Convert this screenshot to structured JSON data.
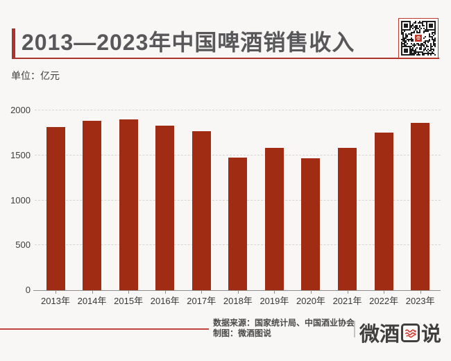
{
  "header": {
    "title": "2013—2023年中国啤酒销售收入"
  },
  "unit_label": "单位：亿元",
  "chart_data": {
    "type": "bar",
    "title": "2013—2023年中国啤酒销售收入",
    "xlabel": "",
    "ylabel": "亿元",
    "categories": [
      "2013年",
      "2014年",
      "2015年",
      "2016年",
      "2017年",
      "2018年",
      "2019年",
      "2020年",
      "2021年",
      "2022年",
      "2023年"
    ],
    "values": [
      1814,
      1886,
      1897,
      1833,
      1766,
      1472,
      1582,
      1469,
      1585,
      1751,
      1863
    ],
    "ylim": [
      0,
      2000
    ],
    "yticks": [
      0,
      500,
      1000,
      1500,
      2000
    ],
    "grid": "horizontal-dashed",
    "legend": "none",
    "bar_color": "#a02c13"
  },
  "footer": {
    "source_line": "数据来源：国家统计局、中国酒业协会",
    "credit_line": "制图：微酒图说",
    "logo_text": "微酒图说",
    "logo_prefix": "微酒",
    "logo_suffix": "说"
  },
  "colors": {
    "accent_red": "#ac342c",
    "bar_red": "#a02c13",
    "footer_line_red": "#c2443e",
    "title_gray": "#58585a",
    "background": "#f8f7f5"
  }
}
